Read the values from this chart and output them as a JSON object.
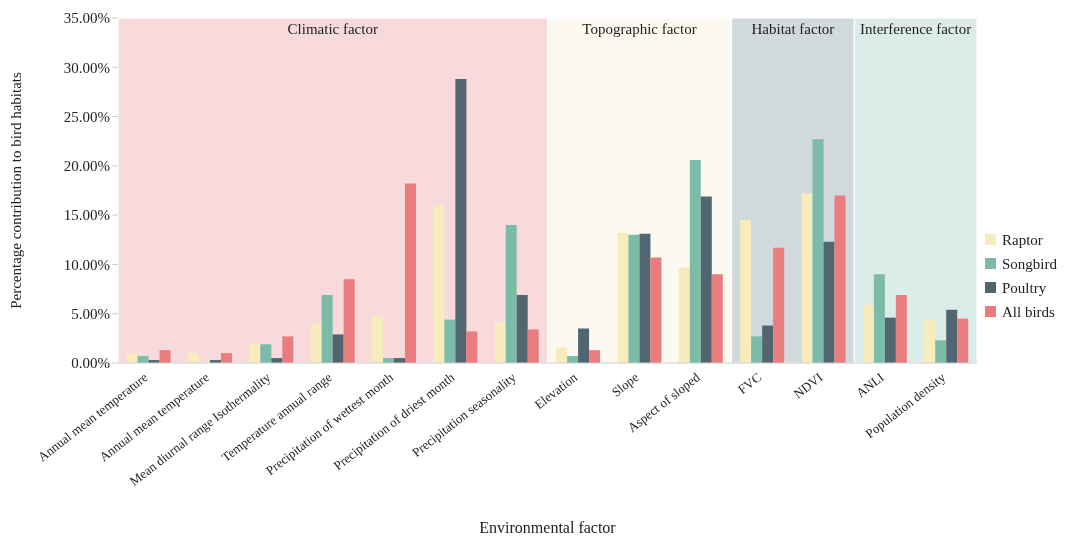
{
  "chart_data": {
    "type": "bar",
    "xlabel": "Environmental factor",
    "ylabel": "Percentage contribution to bird habitats",
    "categories": [
      "Annual mean temperature",
      "Annual mean temperature",
      "Mean diurnal range Isothermality",
      "Temperature annual range",
      "Precipitation of wettest month",
      "Precipitation of driest month",
      "Precipitation seasonality",
      "Elevation",
      "Slope",
      "Aspect of sloped",
      "FVC",
      "NDVI",
      "ANLI",
      "Population density"
    ],
    "series": [
      {
        "name": "Raptor",
        "color": "#f8ecbc",
        "values": [
          1.0,
          1.0,
          2.0,
          4.0,
          4.7,
          16.0,
          4.1,
          1.6,
          13.2,
          9.7,
          14.5,
          17.2,
          5.9,
          4.4
        ]
      },
      {
        "name": "Songbird",
        "color": "#7bbba7",
        "values": [
          0.7,
          0,
          1.9,
          6.9,
          0.5,
          4.4,
          14.0,
          0.7,
          13.0,
          20.6,
          2.7,
          22.7,
          9.0,
          2.3
        ]
      },
      {
        "name": "Poultry",
        "color": "#516670",
        "values": [
          0.3,
          0.3,
          0.5,
          2.9,
          0.5,
          28.8,
          6.9,
          3.5,
          13.1,
          16.9,
          3.8,
          12.3,
          4.6,
          5.4
        ]
      },
      {
        "name": "All birds",
        "color": "#e87c7f",
        "values": [
          1.3,
          1.0,
          2.7,
          8.5,
          18.2,
          3.2,
          3.4,
          1.3,
          10.7,
          9.0,
          11.7,
          17.0,
          6.9,
          4.5
        ]
      }
    ],
    "ylim": [
      0,
      35
    ],
    "yticks": [
      {
        "value": 0,
        "label": "0.00%"
      },
      {
        "value": 5,
        "label": "5.00%"
      },
      {
        "value": 10,
        "label": "10.00%"
      },
      {
        "value": 15,
        "label": "15.00%"
      },
      {
        "value": 20,
        "label": "20.00%"
      },
      {
        "value": 25,
        "label": "25.00%"
      },
      {
        "value": 30,
        "label": "30.00%"
      },
      {
        "value": 35,
        "label": "35.00%"
      }
    ],
    "bands": [
      {
        "axis": "x",
        "from": "Annual mean temperature",
        "to": "Precipitation seasonality",
        "label": "Climatic factor",
        "color": "#f8dadc"
      },
      {
        "axis": "x",
        "from": "Elevation",
        "to": "Aspect of sloped",
        "label": "Topographic factor",
        "color": "#fcfaf0"
      },
      {
        "axis": "x",
        "from": "FVC",
        "to": "NDVI",
        "label": "Habitat factor",
        "color": "#d2d9dd"
      },
      {
        "axis": "x",
        "from": "ANLI",
        "to": "Population density",
        "label": "Interference factor",
        "color": "#dcece9"
      }
    ],
    "grid": false,
    "legend": "right"
  }
}
